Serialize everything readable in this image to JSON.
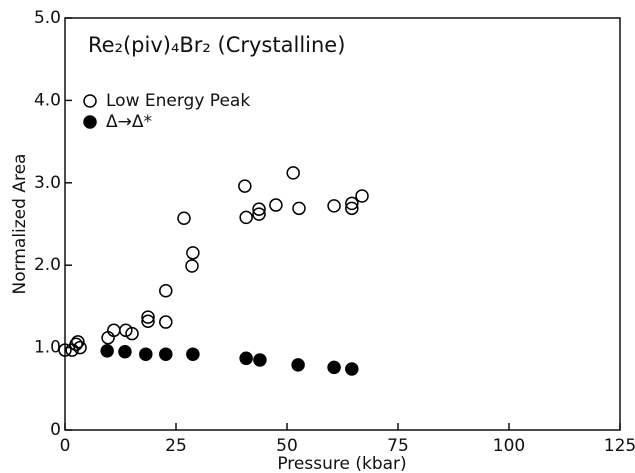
{
  "chart_data": {
    "type": "scatter",
    "title": "Re₂(piv)₄Br₂ (Crystalline)",
    "x_label": "Pressure (kbar)",
    "y_label": "Normalized Area",
    "xlim": [
      0,
      125
    ],
    "xticks": [
      0,
      25,
      50,
      75,
      100,
      125
    ],
    "ylim": [
      0,
      5
    ],
    "yticks": [
      0,
      {
        "value": 1,
        "label": "1.0"
      },
      {
        "value": 2,
        "label": "2.0"
      },
      {
        "value": 3,
        "label": "3.0"
      },
      {
        "value": 4,
        "label": "4.0"
      },
      {
        "value": 5,
        "label": "5.0"
      }
    ],
    "series": [
      {
        "name": "Low Energy Peak",
        "color": "#000000",
        "filled": false,
        "x": [
          0,
          1.6,
          2.5,
          2.9,
          3.4,
          9.7,
          11,
          13.7,
          15.1,
          18.7,
          18.7,
          22.7,
          22.7,
          26.8,
          28.8,
          28.6,
          40.5,
          40.8,
          43.7,
          43.7,
          47.5,
          51.4,
          52.7,
          60.6,
          64.6,
          64.6,
          66.9
        ],
        "values": [
          0.97,
          0.97,
          1.04,
          1.07,
          1.0,
          1.12,
          1.21,
          1.21,
          1.17,
          1.32,
          1.37,
          1.31,
          1.69,
          2.57,
          2.15,
          1.99,
          2.96,
          2.58,
          2.68,
          2.62,
          2.73,
          3.12,
          2.69,
          2.72,
          2.69,
          2.75,
          2.84
        ]
      },
      {
        "name": "Δ→Δ*",
        "color": "#000000",
        "filled": true,
        "x": [
          9.5,
          13.5,
          18.2,
          22.7,
          28.8,
          40.8,
          43.9,
          52.5,
          60.6,
          64.6
        ],
        "values": [
          0.96,
          0.95,
          0.92,
          0.92,
          0.92,
          0.87,
          0.85,
          0.79,
          0.76,
          0.74
        ]
      }
    ]
  }
}
